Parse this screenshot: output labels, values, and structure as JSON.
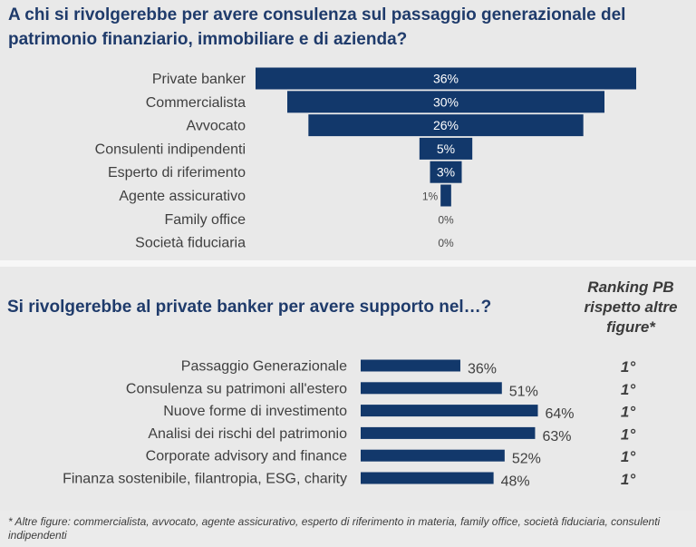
{
  "chart_data": [
    {
      "type": "bar",
      "orientation": "horizontal",
      "layout": "funnel-centered",
      "title": "A chi si rivolgerebbe per avere consulenza sul passaggio generazionale del patrimonio finanziario, immobiliare e di azienda?",
      "categories": [
        "Private banker",
        "Commercialista",
        "Avvocato",
        "Consulenti indipendenti",
        "Esperto di riferimento",
        "Agente assicurativo",
        "Family office",
        "Società fiduciaria"
      ],
      "values": [
        36,
        30,
        26,
        5,
        3,
        1,
        0,
        0
      ],
      "data_labels": [
        "36%",
        "30%",
        "26%",
        "5%",
        "3%",
        "1%",
        "0%",
        "0%"
      ],
      "unit": "%",
      "color": "#12386b",
      "grid": false,
      "legend": "none"
    },
    {
      "type": "bar",
      "orientation": "horizontal",
      "title": "Si rivolgerebbe al private banker per avere supporto nel…?",
      "categories": [
        "Passaggio Generazionale",
        "Consulenza su patrimoni all'estero",
        "Nuove forme di investimento",
        "Analisi dei rischi del patrimonio",
        "Corporate advisory and finance",
        "Finanza sostenibile, filantropia, ESG, charity"
      ],
      "values": [
        36,
        51,
        64,
        63,
        52,
        48
      ],
      "data_labels": [
        "36%",
        "51%",
        "64%",
        "63%",
        "52%",
        "48%"
      ],
      "unit": "%",
      "color": "#12386b",
      "ranking_header": "Ranking PB rispetto altre figure*",
      "ranking": [
        "1°",
        "1°",
        "1°",
        "1°",
        "1°",
        "1°"
      ],
      "grid": false,
      "legend": "none"
    }
  ],
  "footnote": "* Altre figure: commercialista, avvocato, agente assicurativo, esperto di riferimento in materia, family office, società fiduciaria, consulenti indipendenti"
}
